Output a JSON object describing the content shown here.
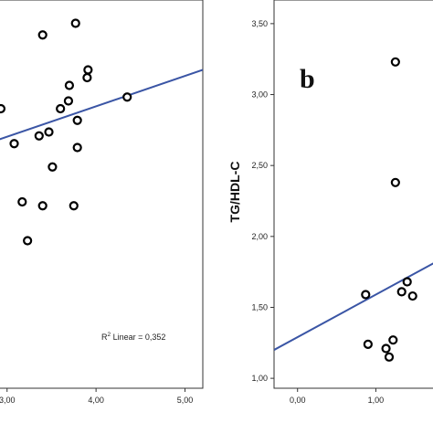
{
  "chart_data": [
    {
      "type": "scatter",
      "panel_label": "",
      "xlabel": "",
      "ylabel": "",
      "x_ticks": [
        "3,00",
        "4,00",
        "5,00"
      ],
      "xlim": [
        2.9,
        5.2
      ],
      "ylim": [
        0.0,
        1.0
      ],
      "y_ticks": [],
      "points": [
        {
          "x": 2.93,
          "y": 0.72
        },
        {
          "x": 3.08,
          "y": 0.63
        },
        {
          "x": 3.17,
          "y": 0.48
        },
        {
          "x": 3.23,
          "y": 0.38
        },
        {
          "x": 3.36,
          "y": 0.65
        },
        {
          "x": 3.4,
          "y": 0.47
        },
        {
          "x": 3.4,
          "y": 0.91
        },
        {
          "x": 3.47,
          "y": 0.66
        },
        {
          "x": 3.51,
          "y": 0.57
        },
        {
          "x": 3.6,
          "y": 0.72
        },
        {
          "x": 3.69,
          "y": 0.74
        },
        {
          "x": 3.7,
          "y": 0.78
        },
        {
          "x": 3.75,
          "y": 0.47
        },
        {
          "x": 3.77,
          "y": 0.94
        },
        {
          "x": 3.79,
          "y": 0.69
        },
        {
          "x": 3.79,
          "y": 0.62
        },
        {
          "x": 3.9,
          "y": 0.8
        },
        {
          "x": 3.91,
          "y": 0.82
        },
        {
          "x": 4.35,
          "y": 0.75
        }
      ],
      "fit_line": {
        "x": [
          2.9,
          5.2
        ],
        "y": [
          0.64,
          0.82
        ],
        "color": "#3a55a5"
      },
      "annotation": "R² Linear = 0,352",
      "annotation_main": "R",
      "annotation_sup": "2",
      "annotation_rest": " Linear = 0,352",
      "grid": false
    },
    {
      "type": "scatter",
      "panel_label": "b",
      "xlabel": "",
      "ylabel": "TG/HDL-C",
      "x_ticks": [
        "0,00",
        "1,00"
      ],
      "xlim": [
        -0.3,
        1.8
      ],
      "ylim": [
        0.93,
        3.57
      ],
      "y_ticks": [
        "1,00",
        "1,50",
        "2,00",
        "2,50",
        "3,00",
        "3,50"
      ],
      "points": [
        {
          "x": 0.87,
          "y": 1.59
        },
        {
          "x": 0.9,
          "y": 1.24
        },
        {
          "x": 1.13,
          "y": 1.21
        },
        {
          "x": 1.17,
          "y": 1.15
        },
        {
          "x": 1.22,
          "y": 1.27
        },
        {
          "x": 1.25,
          "y": 3.23
        },
        {
          "x": 1.25,
          "y": 2.38
        },
        {
          "x": 1.33,
          "y": 1.61
        },
        {
          "x": 1.4,
          "y": 1.68
        },
        {
          "x": 1.47,
          "y": 1.58
        }
      ],
      "fit_line": {
        "x": [
          -0.3,
          1.8
        ],
        "y": [
          1.2,
          1.83
        ],
        "color": "#3a55a5"
      },
      "grid": false
    }
  ]
}
